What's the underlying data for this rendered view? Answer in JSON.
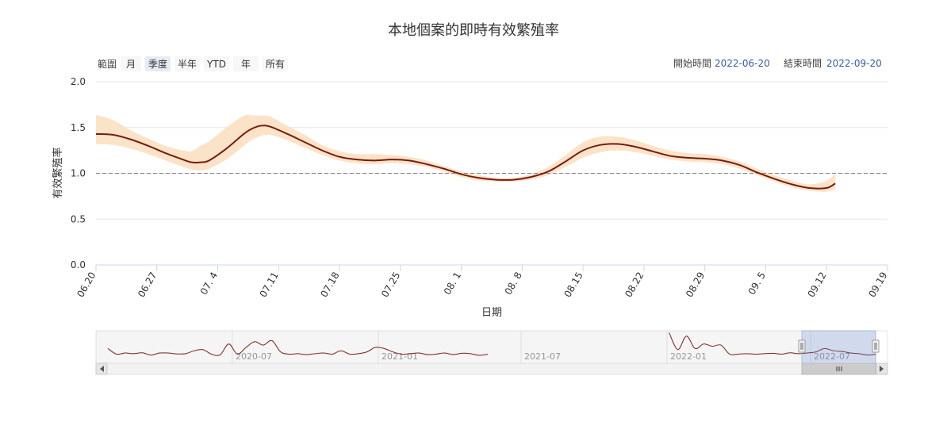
{
  "title": "本地個案的即時有效繁殖率",
  "range_selector": {
    "label": "範圍",
    "buttons": [
      "月",
      "季度",
      "半年",
      "YTD",
      "年",
      "所有"
    ],
    "selected": "季度",
    "start_label": "開始時間",
    "start_value": "2022-06-20",
    "end_label": "結束時間",
    "end_value": "2022-09-20"
  },
  "colors": {
    "line": "#7a1a10",
    "band": "#fbe3c8",
    "reference": "#888888",
    "navigator_mask": "#cdd6ee"
  },
  "chart_data": {
    "type": "line",
    "title": "本地個案的即時有效繁殖率",
    "xlabel": "日期",
    "ylabel": "有效繁殖率",
    "xlim": [
      "2022-06-20",
      "2022-09-19"
    ],
    "ylim": [
      0,
      2.0
    ],
    "y_ticks": [
      0.0,
      0.5,
      1.0,
      1.5,
      2.0
    ],
    "y_tick_labels": [
      "0.0",
      "0.5",
      "1.0",
      "1.5",
      "2.0"
    ],
    "x_ticks": [
      "2022-06-20",
      "2022-06-27",
      "2022-07-04",
      "2022-07-11",
      "2022-07-18",
      "2022-07-25",
      "2022-08-01",
      "2022-08-08",
      "2022-08-15",
      "2022-08-22",
      "2022-08-29",
      "2022-09-05",
      "2022-09-12",
      "2022-09-19"
    ],
    "x_tick_labels": [
      "06.20",
      "06.27",
      "07. 4",
      "07.11",
      "07.18",
      "07.25",
      "08. 1",
      "08. 8",
      "08.15",
      "08.22",
      "08.29",
      "09. 5",
      "09.12",
      "09.19"
    ],
    "reference_line": 1.0,
    "grid": true,
    "series": [
      {
        "x": [
          "2022-06-20",
          "2022-06-22",
          "2022-06-24",
          "2022-06-26",
          "2022-06-28",
          "2022-06-30",
          "2022-07-01",
          "2022-07-02",
          "2022-07-03",
          "2022-07-05",
          "2022-07-07",
          "2022-07-08",
          "2022-07-09",
          "2022-07-10",
          "2022-07-12",
          "2022-07-14",
          "2022-07-16",
          "2022-07-18",
          "2022-07-20",
          "2022-07-22",
          "2022-07-24",
          "2022-07-26",
          "2022-07-28",
          "2022-07-30",
          "2022-08-01",
          "2022-08-03",
          "2022-08-05",
          "2022-08-07",
          "2022-08-09",
          "2022-08-11",
          "2022-08-13",
          "2022-08-15",
          "2022-08-17",
          "2022-08-19",
          "2022-08-21",
          "2022-08-23",
          "2022-08-25",
          "2022-08-27",
          "2022-08-29",
          "2022-08-31",
          "2022-09-02",
          "2022-09-04",
          "2022-09-06",
          "2022-09-08",
          "2022-09-10",
          "2022-09-12",
          "2022-09-13"
        ],
        "y": [
          1.43,
          1.42,
          1.37,
          1.3,
          1.22,
          1.15,
          1.12,
          1.12,
          1.14,
          1.27,
          1.43,
          1.49,
          1.52,
          1.51,
          1.43,
          1.34,
          1.25,
          1.18,
          1.15,
          1.14,
          1.15,
          1.14,
          1.1,
          1.05,
          0.99,
          0.95,
          0.93,
          0.93,
          0.96,
          1.02,
          1.13,
          1.25,
          1.31,
          1.32,
          1.29,
          1.24,
          1.19,
          1.17,
          1.16,
          1.14,
          1.09,
          1.01,
          0.94,
          0.88,
          0.84,
          0.84,
          0.89
        ],
        "lower": [
          1.32,
          1.31,
          1.27,
          1.21,
          1.14,
          1.07,
          1.04,
          1.03,
          1.05,
          1.15,
          1.3,
          1.37,
          1.41,
          1.42,
          1.36,
          1.28,
          1.2,
          1.14,
          1.11,
          1.1,
          1.11,
          1.1,
          1.07,
          1.02,
          0.96,
          0.92,
          0.91,
          0.91,
          0.93,
          0.98,
          1.07,
          1.17,
          1.23,
          1.25,
          1.23,
          1.19,
          1.15,
          1.13,
          1.12,
          1.1,
          1.05,
          0.98,
          0.91,
          0.85,
          0.81,
          0.8,
          0.83
        ],
        "upper": [
          1.64,
          1.58,
          1.47,
          1.38,
          1.3,
          1.25,
          1.24,
          1.3,
          1.35,
          1.5,
          1.63,
          1.63,
          1.63,
          1.62,
          1.52,
          1.42,
          1.31,
          1.24,
          1.21,
          1.21,
          1.2,
          1.18,
          1.14,
          1.08,
          1.02,
          0.98,
          0.95,
          0.95,
          0.99,
          1.07,
          1.2,
          1.34,
          1.4,
          1.4,
          1.36,
          1.3,
          1.25,
          1.22,
          1.21,
          1.18,
          1.13,
          1.05,
          0.98,
          0.92,
          0.88,
          0.92,
          1.0
        ]
      }
    ]
  },
  "navigator": {
    "labels": [
      "2020-07",
      "2021-01",
      "2021-07",
      "2022-01",
      "2022-07"
    ],
    "values": [
      1.25,
      1.0,
      1.05,
      1.02,
      1.06,
      0.96,
      1.05,
      1.05,
      1.01,
      1.02,
      1.15,
      1.2,
      1.0,
      0.97,
      1.45,
      1.0,
      1.3,
      1.55,
      1.4,
      1.6,
      1.1,
      1.0,
      1.02,
      0.98,
      1.02,
      1.05,
      1.0,
      1.15,
      1.0,
      1.02,
      1.1,
      1.3,
      1.25,
      1.1,
      1.0,
      1.02,
      1.05,
      0.98,
      1.0,
      1.05,
      0.98,
      1.04,
      1.02,
      0.95,
      1.0,
      null,
      null,
      null,
      null,
      null,
      null,
      null,
      null,
      null,
      null,
      null,
      null,
      null,
      null,
      null,
      null,
      null,
      null,
      null,
      null,
      1.95,
      1.2,
      1.8,
      1.25,
      1.45,
      1.35,
      1.4,
      1.0,
      1.0,
      1.02,
      1.0,
      1.02,
      1.04,
      1.0,
      1.06,
      1.02,
      1.05,
      1.1,
      1.25,
      1.15,
      1.12,
      1.05,
      1.02,
      0.96,
      1.0
    ]
  }
}
